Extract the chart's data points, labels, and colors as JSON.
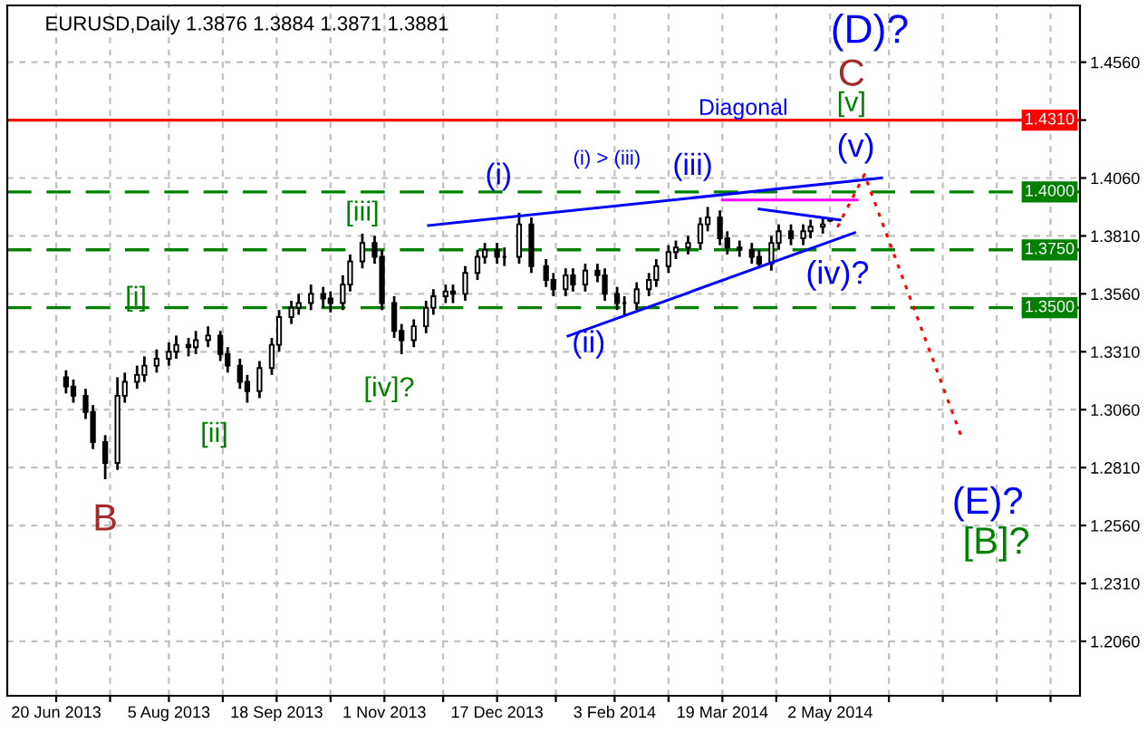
{
  "chart_data": {
    "type": "candlestick",
    "title": "EURUSD,Daily 1.3876 1.3884 1.3871 1.3881",
    "xlim": [
      "2013-05-31",
      "2014-08-12"
    ],
    "ylim": [
      1.1825,
      1.4805
    ],
    "xticks": [
      {
        "value": "2013-06-20",
        "label": "20 Jun 2013"
      },
      {
        "value": "2013-07-12",
        "label": null
      },
      {
        "value": "2013-08-05",
        "label": "5 Aug 2013"
      },
      {
        "value": "2013-08-27",
        "label": null
      },
      {
        "value": "2013-09-18",
        "label": "18 Sep 2013"
      },
      {
        "value": "2013-10-10",
        "label": null
      },
      {
        "value": "2013-11-01",
        "label": "1 Nov 2013"
      },
      {
        "value": "2013-11-25",
        "label": null
      },
      {
        "value": "2013-12-17",
        "label": "17 Dec 2013"
      },
      {
        "value": "2014-01-10",
        "label": null
      },
      {
        "value": "2014-02-03",
        "label": "3 Feb 2014"
      },
      {
        "value": "2014-02-25",
        "label": null
      },
      {
        "value": "2014-03-19",
        "label": "19 Mar 2014"
      },
      {
        "value": "2014-04-10",
        "label": null
      },
      {
        "value": "2014-05-02",
        "label": "2 May 2014"
      },
      {
        "value": "2014-05-26",
        "label": null
      },
      {
        "value": "2014-06-17",
        "label": null
      },
      {
        "value": "2014-07-09",
        "label": null
      },
      {
        "value": "2014-07-31",
        "label": null
      }
    ],
    "yticks": [
      {
        "value": 1.206,
        "label": "1.2060"
      },
      {
        "value": 1.231,
        "label": "1.2310"
      },
      {
        "value": 1.256,
        "label": "1.2560"
      },
      {
        "value": 1.281,
        "label": "1.2810"
      },
      {
        "value": 1.306,
        "label": "1.3060"
      },
      {
        "value": 1.331,
        "label": "1.3310"
      },
      {
        "value": 1.356,
        "label": "1.3560"
      },
      {
        "value": 1.381,
        "label": "1.3810"
      },
      {
        "value": 1.406,
        "label": "1.4060"
      },
      {
        "value": 1.431,
        "label": null
      },
      {
        "value": 1.456,
        "label": "1.4560"
      }
    ],
    "grid": true,
    "series": [
      {
        "color": "#000000",
        "x": [
          "2013-06-24",
          "2013-06-27",
          "2013-07-02",
          "2013-07-05",
          "2013-07-10",
          "2013-07-15",
          "2013-07-18",
          "2013-07-23",
          "2013-07-26",
          "2013-07-31",
          "2013-08-05",
          "2013-08-08",
          "2013-08-13",
          "2013-08-16",
          "2013-08-21",
          "2013-08-26",
          "2013-08-29",
          "2013-09-03",
          "2013-09-06",
          "2013-09-11",
          "2013-09-16",
          "2013-09-19",
          "2013-09-24",
          "2013-09-27",
          "2013-10-02",
          "2013-10-07",
          "2013-10-10",
          "2013-10-15",
          "2013-10-18",
          "2013-10-23",
          "2013-10-28",
          "2013-10-31",
          "2013-11-05",
          "2013-11-08",
          "2013-11-13",
          "2013-11-18",
          "2013-11-21",
          "2013-11-26",
          "2013-11-29",
          "2013-12-04",
          "2013-12-09",
          "2013-12-12",
          "2013-12-17",
          "2013-12-20",
          "2013-12-26",
          "2013-12-31",
          "2014-01-06",
          "2014-01-09",
          "2014-01-14",
          "2014-01-17",
          "2014-01-22",
          "2014-01-27",
          "2014-01-30",
          "2014-02-04",
          "2014-02-07",
          "2014-02-12",
          "2014-02-17",
          "2014-02-20",
          "2014-02-25",
          "2014-02-28",
          "2014-03-05",
          "2014-03-10",
          "2014-03-13",
          "2014-03-18",
          "2014-03-21",
          "2014-03-26",
          "2014-03-31",
          "2014-04-03",
          "2014-04-08",
          "2014-04-11",
          "2014-04-16",
          "2014-04-21",
          "2014-04-24",
          "2014-04-29",
          "2014-05-02"
        ],
        "ohlc": [
          [
            1.32,
            1.323,
            1.313,
            1.316
          ],
          [
            1.316,
            1.319,
            1.309,
            1.312
          ],
          [
            1.312,
            1.315,
            1.302,
            1.305
          ],
          [
            1.305,
            1.308,
            1.289,
            1.292
          ],
          [
            1.292,
            1.295,
            1.276,
            1.283
          ],
          [
            1.283,
            1.32,
            1.28,
            1.312
          ],
          [
            1.312,
            1.322,
            1.309,
            1.318
          ],
          [
            1.318,
            1.325,
            1.315,
            1.321
          ],
          [
            1.321,
            1.329,
            1.318,
            1.325
          ],
          [
            1.325,
            1.332,
            1.322,
            1.328
          ],
          [
            1.328,
            1.335,
            1.325,
            1.331
          ],
          [
            1.331,
            1.338,
            1.328,
            1.334
          ],
          [
            1.334,
            1.337,
            1.329,
            1.333
          ],
          [
            1.333,
            1.34,
            1.33,
            1.336
          ],
          [
            1.336,
            1.342,
            1.333,
            1.338
          ],
          [
            1.338,
            1.34,
            1.327,
            1.33
          ],
          [
            1.33,
            1.333,
            1.322,
            1.325
          ],
          [
            1.325,
            1.328,
            1.315,
            1.318
          ],
          [
            1.318,
            1.321,
            1.309,
            1.314
          ],
          [
            1.314,
            1.327,
            1.311,
            1.324
          ],
          [
            1.324,
            1.337,
            1.321,
            1.334
          ],
          [
            1.334,
            1.349,
            1.331,
            1.346
          ],
          [
            1.346,
            1.353,
            1.343,
            1.35
          ],
          [
            1.35,
            1.356,
            1.347,
            1.352
          ],
          [
            1.352,
            1.36,
            1.349,
            1.356
          ],
          [
            1.356,
            1.359,
            1.35,
            1.354
          ],
          [
            1.354,
            1.357,
            1.348,
            1.352
          ],
          [
            1.352,
            1.364,
            1.349,
            1.36
          ],
          [
            1.36,
            1.373,
            1.357,
            1.37
          ],
          [
            1.37,
            1.382,
            1.367,
            1.378
          ],
          [
            1.378,
            1.381,
            1.369,
            1.372
          ],
          [
            1.372,
            1.375,
            1.349,
            1.352
          ],
          [
            1.352,
            1.355,
            1.337,
            1.34
          ],
          [
            1.34,
            1.343,
            1.33,
            1.336
          ],
          [
            1.336,
            1.345,
            1.333,
            1.342
          ],
          [
            1.342,
            1.353,
            1.339,
            1.35
          ],
          [
            1.35,
            1.358,
            1.347,
            1.355
          ],
          [
            1.355,
            1.36,
            1.352,
            1.357
          ],
          [
            1.357,
            1.36,
            1.352,
            1.356
          ],
          [
            1.356,
            1.368,
            1.353,
            1.365
          ],
          [
            1.365,
            1.375,
            1.362,
            1.372
          ],
          [
            1.372,
            1.378,
            1.369,
            1.375
          ],
          [
            1.375,
            1.378,
            1.369,
            1.372
          ],
          [
            1.372,
            1.376,
            1.368,
            1.372
          ],
          [
            1.372,
            1.391,
            1.369,
            1.386
          ],
          [
            1.386,
            1.389,
            1.365,
            1.368
          ],
          [
            1.368,
            1.371,
            1.359,
            1.362
          ],
          [
            1.362,
            1.365,
            1.355,
            1.358
          ],
          [
            1.358,
            1.367,
            1.355,
            1.364
          ],
          [
            1.364,
            1.367,
            1.357,
            1.36
          ],
          [
            1.36,
            1.369,
            1.357,
            1.366
          ],
          [
            1.366,
            1.369,
            1.361,
            1.364
          ],
          [
            1.364,
            1.367,
            1.353,
            1.356
          ],
          [
            1.356,
            1.359,
            1.349,
            1.352
          ],
          [
            1.352,
            1.355,
            1.347,
            1.352
          ],
          [
            1.352,
            1.361,
            1.349,
            1.358
          ],
          [
            1.358,
            1.365,
            1.355,
            1.362
          ],
          [
            1.362,
            1.371,
            1.359,
            1.368
          ],
          [
            1.368,
            1.377,
            1.365,
            1.374
          ],
          [
            1.374,
            1.379,
            1.371,
            1.376
          ],
          [
            1.376,
            1.381,
            1.373,
            1.378
          ],
          [
            1.378,
            1.389,
            1.375,
            1.386
          ],
          [
            1.386,
            1.3935,
            1.383,
            1.389
          ],
          [
            1.389,
            1.392,
            1.377,
            1.38
          ],
          [
            1.38,
            1.383,
            1.373,
            1.376
          ],
          [
            1.376,
            1.379,
            1.372,
            1.375
          ],
          [
            1.375,
            1.378,
            1.369,
            1.372
          ],
          [
            1.372,
            1.375,
            1.367,
            1.369
          ],
          [
            1.369,
            1.381,
            1.366,
            1.378
          ],
          [
            1.378,
            1.386,
            1.375,
            1.383
          ],
          [
            1.383,
            1.386,
            1.377,
            1.38
          ],
          [
            1.38,
            1.386,
            1.377,
            1.383
          ],
          [
            1.383,
            1.388,
            1.38,
            1.385
          ],
          [
            1.385,
            1.389,
            1.382,
            1.386
          ],
          [
            1.3876,
            1.3884,
            1.3871,
            1.3881
          ]
        ]
      },
      {
        "type": "line",
        "color": "#0000ff",
        "line_style": "solid",
        "x": [
          "2013-11-19",
          "2014-05-23"
        ],
        "values": [
          1.3855,
          1.406
        ]
      },
      {
        "type": "line",
        "color": "#0000ff",
        "line_style": "solid",
        "x": [
          "2014-01-15",
          "2014-05-12"
        ],
        "values": [
          1.3378,
          1.3824
        ]
      },
      {
        "type": "line",
        "color": "#0000ff",
        "line_style": "solid",
        "x": [
          "2014-04-03",
          "2014-05-06"
        ],
        "values": [
          1.3926,
          1.3879
        ]
      },
      {
        "type": "line",
        "color": "#ff00ff",
        "line_style": "solid",
        "x": [
          "2014-03-19",
          "2014-05-13"
        ],
        "values": [
          1.3965,
          1.3965
        ]
      },
      {
        "type": "line",
        "color": "#ff0000",
        "line_style": "dotted",
        "x": [
          "2014-05-05",
          "2014-05-16",
          "2014-06-25"
        ],
        "values": [
          1.3848,
          1.4075,
          1.2932
        ]
      }
    ],
    "ref_lines": [
      {
        "axis": "y",
        "value": 1.431,
        "label": "1.4310",
        "color": "#ff0000",
        "line_style": "solid"
      },
      {
        "axis": "y",
        "value": 1.4,
        "label": "1.4000",
        "color": "#008000",
        "line_style": "dashed"
      },
      {
        "axis": "y",
        "value": 1.375,
        "label": "1.3750",
        "color": "#008000",
        "line_style": "dashed"
      },
      {
        "axis": "y",
        "value": 1.35,
        "label": "1.3500",
        "color": "#008000",
        "line_style": "dashed"
      }
    ],
    "annotations": [
      {
        "text": "B",
        "x": "2013-07-10",
        "y": 1.276
      },
      "[i]",
      "[ii]",
      {
        "text": "[iii]",
        "x": "2013-10-23",
        "y": 1.382
      },
      "[iv]?",
      "(i)",
      "(i) > (iii)",
      "(ii)",
      "(iii)",
      "Diagonal",
      "(iv)?",
      "(v)",
      "[v]",
      "C",
      "(D)?",
      "(E)?",
      "[B]?"
    ]
  }
}
